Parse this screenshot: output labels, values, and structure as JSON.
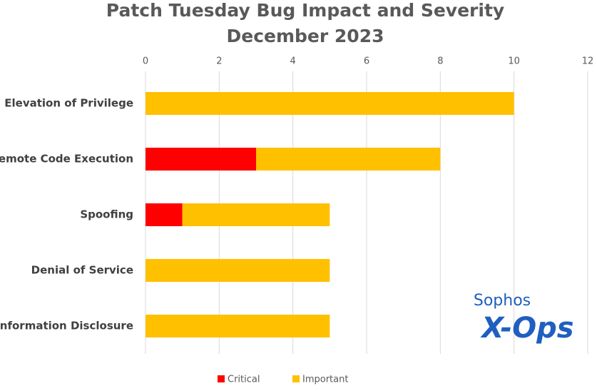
{
  "chart_data": {
    "type": "stacked-barh",
    "title": "Patch Tuesday Bug Impact and Severity",
    "subtitle": "December 2023",
    "categories": [
      "Elevation of Privilege",
      "Remote Code Execution",
      "Spoofing",
      "Denial of Service",
      "Information Disclosure"
    ],
    "series": [
      {
        "name": "Critical",
        "color": "#ff0000",
        "values": [
          0,
          3,
          1,
          0,
          0
        ]
      },
      {
        "name": "Important",
        "color": "#ffc000",
        "values": [
          10,
          5,
          4,
          5,
          5
        ]
      }
    ],
    "xlim": [
      0,
      12
    ],
    "xticks": [
      0,
      2,
      4,
      6,
      8,
      10,
      12
    ],
    "grid": true,
    "legend": "bottom"
  },
  "logo": {
    "line1": "Sophos",
    "line2": "X-Ops"
  }
}
